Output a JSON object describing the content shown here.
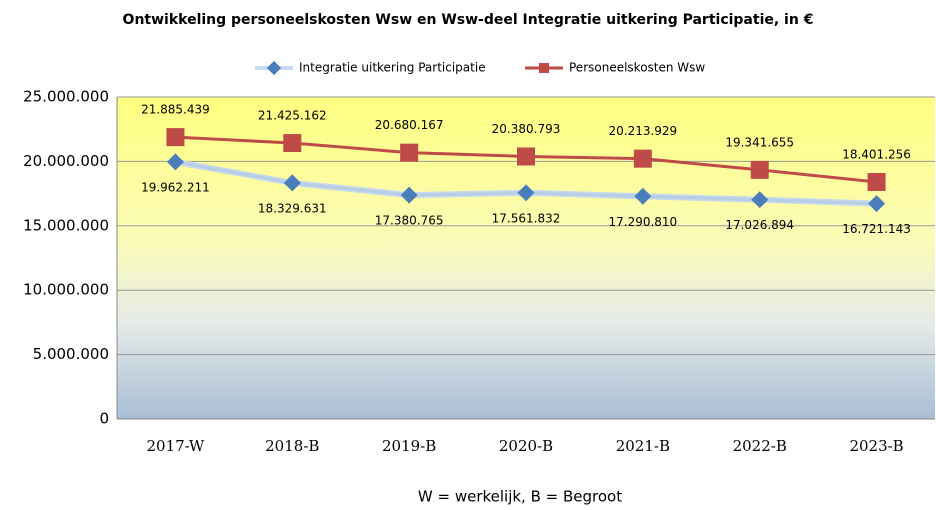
{
  "chart_data": {
    "type": "line",
    "title": "Ontwikkeling personeelskosten  Wsw en Wsw-deel Integratie uitkering Participatie, in €",
    "xlabel": "W = werkelijk, B = Begroot",
    "categories": [
      "2017-W",
      "2018-B",
      "2019-B",
      "2020-B",
      "2021-B",
      "2022-B",
      "2023-B"
    ],
    "series": [
      {
        "name": "Integratie uitkering Participatie",
        "color": "#4a7ebb",
        "values": [
          19962211,
          18329631,
          17380765,
          17561832,
          17290810,
          17026894,
          16721143
        ],
        "value_labels": [
          "19.962.211",
          "18.329.631",
          "17.380.765",
          "17.561.832",
          "17.290.810",
          "17.026.894",
          "16.721.143"
        ]
      },
      {
        "name": "Personeelskosten Wsw",
        "color": "#be4b48",
        "values": [
          21885439,
          21425162,
          20680167,
          20380793,
          20213929,
          19341655,
          18401256
        ],
        "value_labels": [
          "21.885.439",
          "21.425.162",
          "20.680.167",
          "20.380.793",
          "20.213.929",
          "19.341.655",
          "18.401.256"
        ]
      }
    ],
    "ylim": [
      0,
      25000000
    ],
    "yticks": [
      0,
      {
        "value": 5000000,
        "label": "5.000.000"
      },
      {
        "value": 10000000,
        "label": "10.000.000"
      },
      {
        "value": 15000000,
        "label": "15.000.000"
      },
      {
        "value": 20000000,
        "label": "20.000.000"
      },
      {
        "value": 25000000,
        "label": "25.000.000"
      }
    ],
    "grid": true,
    "legend": "top"
  }
}
